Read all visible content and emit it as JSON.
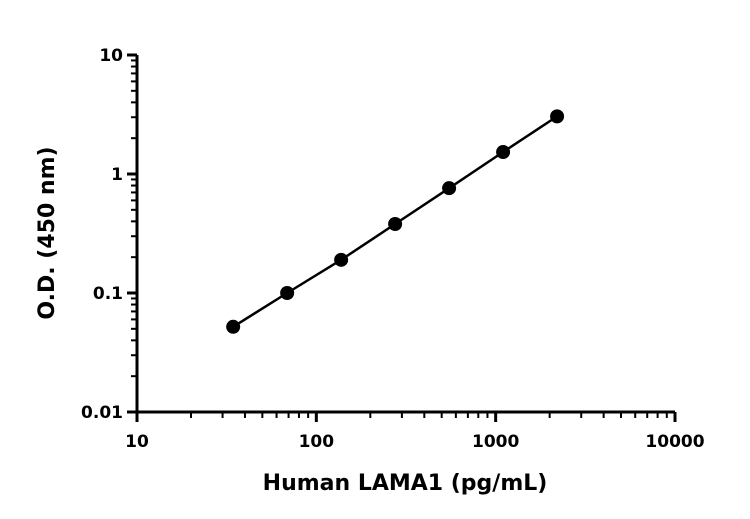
{
  "chart_data": {
    "type": "line",
    "markers": true,
    "xlabel": "Human LAMA1 (pg/mL)",
    "ylabel": "O.D. (450 nm)",
    "x": [
      34.375,
      68.75,
      137.5,
      275,
      550,
      1100,
      2200
    ],
    "series": [
      {
        "color": "#000000",
        "values": [
          0.052,
          0.1,
          0.19,
          0.38,
          0.76,
          1.53,
          3.05
        ]
      }
    ],
    "xscale": "log",
    "yscale": "log",
    "xlim": [
      10,
      10000
    ],
    "ylim": [
      0.01,
      10
    ],
    "xticks": [
      10,
      100,
      1000,
      10000
    ],
    "yticks": [
      0.01,
      0.1,
      1,
      10
    ]
  }
}
